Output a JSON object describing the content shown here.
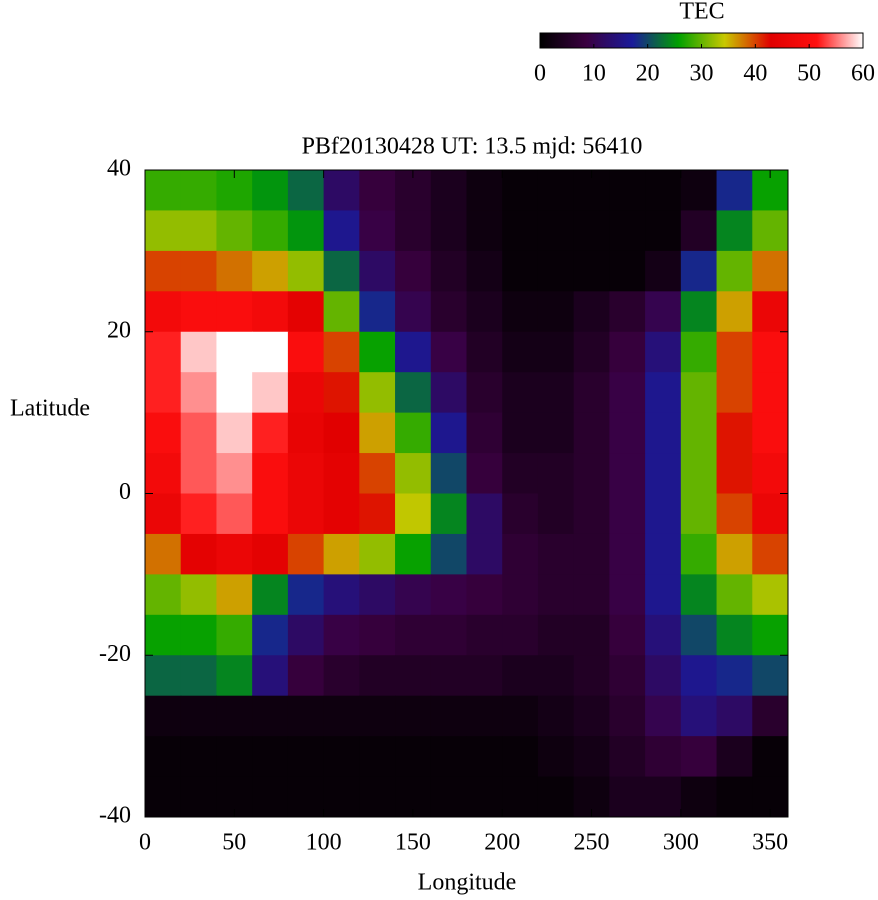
{
  "chart_data": {
    "type": "heatmap",
    "title": "PBf20130428  UT: 13.5  mjd: 56410",
    "xlabel": "Longitude",
    "ylabel": "Latitude",
    "x": [
      10,
      30,
      50,
      70,
      90,
      110,
      130,
      150,
      170,
      190,
      210,
      230,
      250,
      270,
      290,
      310,
      330,
      350
    ],
    "y": [
      37.5,
      32.5,
      27.5,
      22.5,
      17.5,
      12.5,
      7.5,
      2.5,
      -2.5,
      -7.5,
      -12.5,
      -17.5,
      -22.5,
      -27.5,
      -32.5,
      -37.5
    ],
    "z": [
      [
        28,
        28,
        27,
        25,
        22,
        12,
        8,
        6,
        4,
        2,
        1,
        1,
        1,
        1,
        1,
        2,
        18,
        26
      ],
      [
        32,
        32,
        30,
        28,
        25,
        16,
        9,
        6,
        4,
        2,
        1,
        1,
        1,
        1,
        1,
        5,
        24,
        30
      ],
      [
        40,
        40,
        38,
        36,
        32,
        22,
        12,
        8,
        5,
        3,
        1,
        1,
        1,
        1,
        3,
        18,
        30,
        38
      ],
      [
        48,
        50,
        50,
        48,
        44,
        30,
        18,
        10,
        6,
        4,
        2,
        2,
        4,
        6,
        10,
        24,
        36,
        46
      ],
      [
        52,
        58,
        60,
        60,
        50,
        40,
        26,
        16,
        9,
        5,
        3,
        3,
        5,
        8,
        14,
        28,
        40,
        50
      ],
      [
        52,
        56,
        60,
        58,
        46,
        42,
        32,
        22,
        12,
        6,
        4,
        4,
        6,
        9,
        16,
        30,
        40,
        50
      ],
      [
        50,
        54,
        58,
        52,
        45,
        43,
        36,
        28,
        16,
        7,
        4,
        4,
        6,
        9,
        16,
        30,
        42,
        50
      ],
      [
        48,
        54,
        56,
        50,
        46,
        44,
        40,
        32,
        20,
        8,
        5,
        5,
        6,
        9,
        16,
        30,
        42,
        48
      ],
      [
        46,
        52,
        54,
        50,
        46,
        44,
        42,
        34,
        24,
        12,
        6,
        5,
        6,
        9,
        16,
        30,
        40,
        46
      ],
      [
        38,
        44,
        46,
        44,
        40,
        36,
        32,
        26,
        20,
        12,
        7,
        6,
        6,
        9,
        16,
        28,
        36,
        40
      ],
      [
        30,
        32,
        36,
        24,
        18,
        14,
        12,
        10,
        9,
        8,
        7,
        6,
        6,
        9,
        16,
        24,
        30,
        33
      ],
      [
        26,
        26,
        28,
        18,
        12,
        9,
        8,
        7,
        7,
        6,
        6,
        5,
        5,
        8,
        14,
        20,
        24,
        26
      ],
      [
        22,
        22,
        24,
        14,
        8,
        6,
        5,
        5,
        5,
        5,
        4,
        4,
        5,
        7,
        12,
        16,
        18,
        20
      ],
      [
        2,
        2,
        2,
        2,
        2,
        2,
        2,
        2,
        2,
        2,
        2,
        3,
        4,
        6,
        10,
        14,
        12,
        6
      ],
      [
        1,
        1,
        1,
        1,
        1,
        1,
        1,
        1,
        1,
        1,
        1,
        2,
        3,
        5,
        7,
        8,
        4,
        1
      ],
      [
        1,
        1,
        1,
        1,
        1,
        1,
        1,
        1,
        1,
        1,
        1,
        1,
        2,
        4,
        4,
        2,
        1,
        1
      ]
    ],
    "xlim": [
      0,
      360
    ],
    "ylim": [
      -40,
      40
    ],
    "xticks": [
      0,
      50,
      100,
      150,
      200,
      250,
      300,
      350
    ],
    "yticks": [
      -40,
      -20,
      0,
      20,
      40
    ],
    "colorbar": {
      "label": "TEC",
      "lim": [
        0,
        60
      ],
      "ticks": [
        0,
        10,
        20,
        30,
        40,
        50,
        60
      ],
      "colormap": [
        "#000000",
        "#3a0040",
        "#1a1a9a",
        "#00a000",
        "#c8c800",
        "#e00000",
        "#ff1010",
        "#ffffff"
      ]
    }
  }
}
